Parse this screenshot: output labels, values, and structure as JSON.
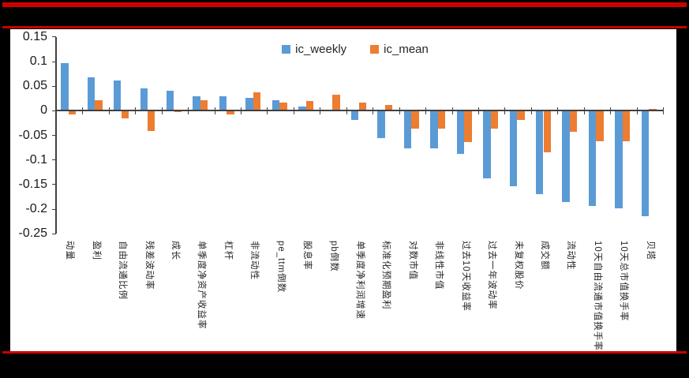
{
  "page": {
    "background_color": "#000000",
    "rule_color": "#CC0000",
    "panel_color": "#FFFFFF"
  },
  "chart_data": {
    "type": "bar",
    "title": "",
    "legend_position": "top-center",
    "grid": false,
    "axis_color": "#404040",
    "categories": [
      "动量",
      "盈利",
      "自由流通比例",
      "残差波动率",
      "成长",
      "单季度净资产收益率",
      "杠杆",
      "非流动性",
      "pe_ttm倒数",
      "股息率",
      "pb倒数",
      "单季度净利润增速",
      "标准化预期盈利",
      "对数市值",
      "非线性市值",
      "过去10天收益率",
      "过去一年波动率",
      "未复权股价",
      "成交额",
      "流动性",
      "10天自由流通市值换手率",
      "10天总市值换手率",
      "贝塔"
    ],
    "series": [
      {
        "name": "ic_weekly",
        "color": "#5B9BD5",
        "values": [
          0.097,
          0.068,
          0.061,
          0.046,
          0.041,
          0.03,
          0.03,
          0.027,
          0.021,
          0.008,
          0.002,
          -0.018,
          -0.056,
          -0.077,
          -0.077,
          -0.088,
          -0.137,
          -0.153,
          -0.17,
          -0.186,
          -0.194,
          -0.198,
          -0.214
        ]
      },
      {
        "name": "ic_mean",
        "color": "#ED7D31",
        "values": [
          -0.007,
          0.021,
          -0.015,
          -0.041,
          -0.003,
          0.021,
          -0.007,
          0.037,
          0.017,
          0.02,
          0.032,
          0.017,
          0.012,
          -0.036,
          -0.036,
          -0.064,
          -0.036,
          -0.019,
          -0.084,
          -0.042,
          -0.062,
          -0.062,
          0.004
        ]
      }
    ],
    "ylim": [
      -0.25,
      0.15
    ],
    "ytick_interval": 0.05,
    "ytick_labels": [
      "0.15",
      "0.1",
      "0.05",
      "0",
      "-0.05",
      "-0.1",
      "-0.15",
      "-0.2",
      "-0.25"
    ],
    "xlabel": "",
    "ylabel": ""
  }
}
